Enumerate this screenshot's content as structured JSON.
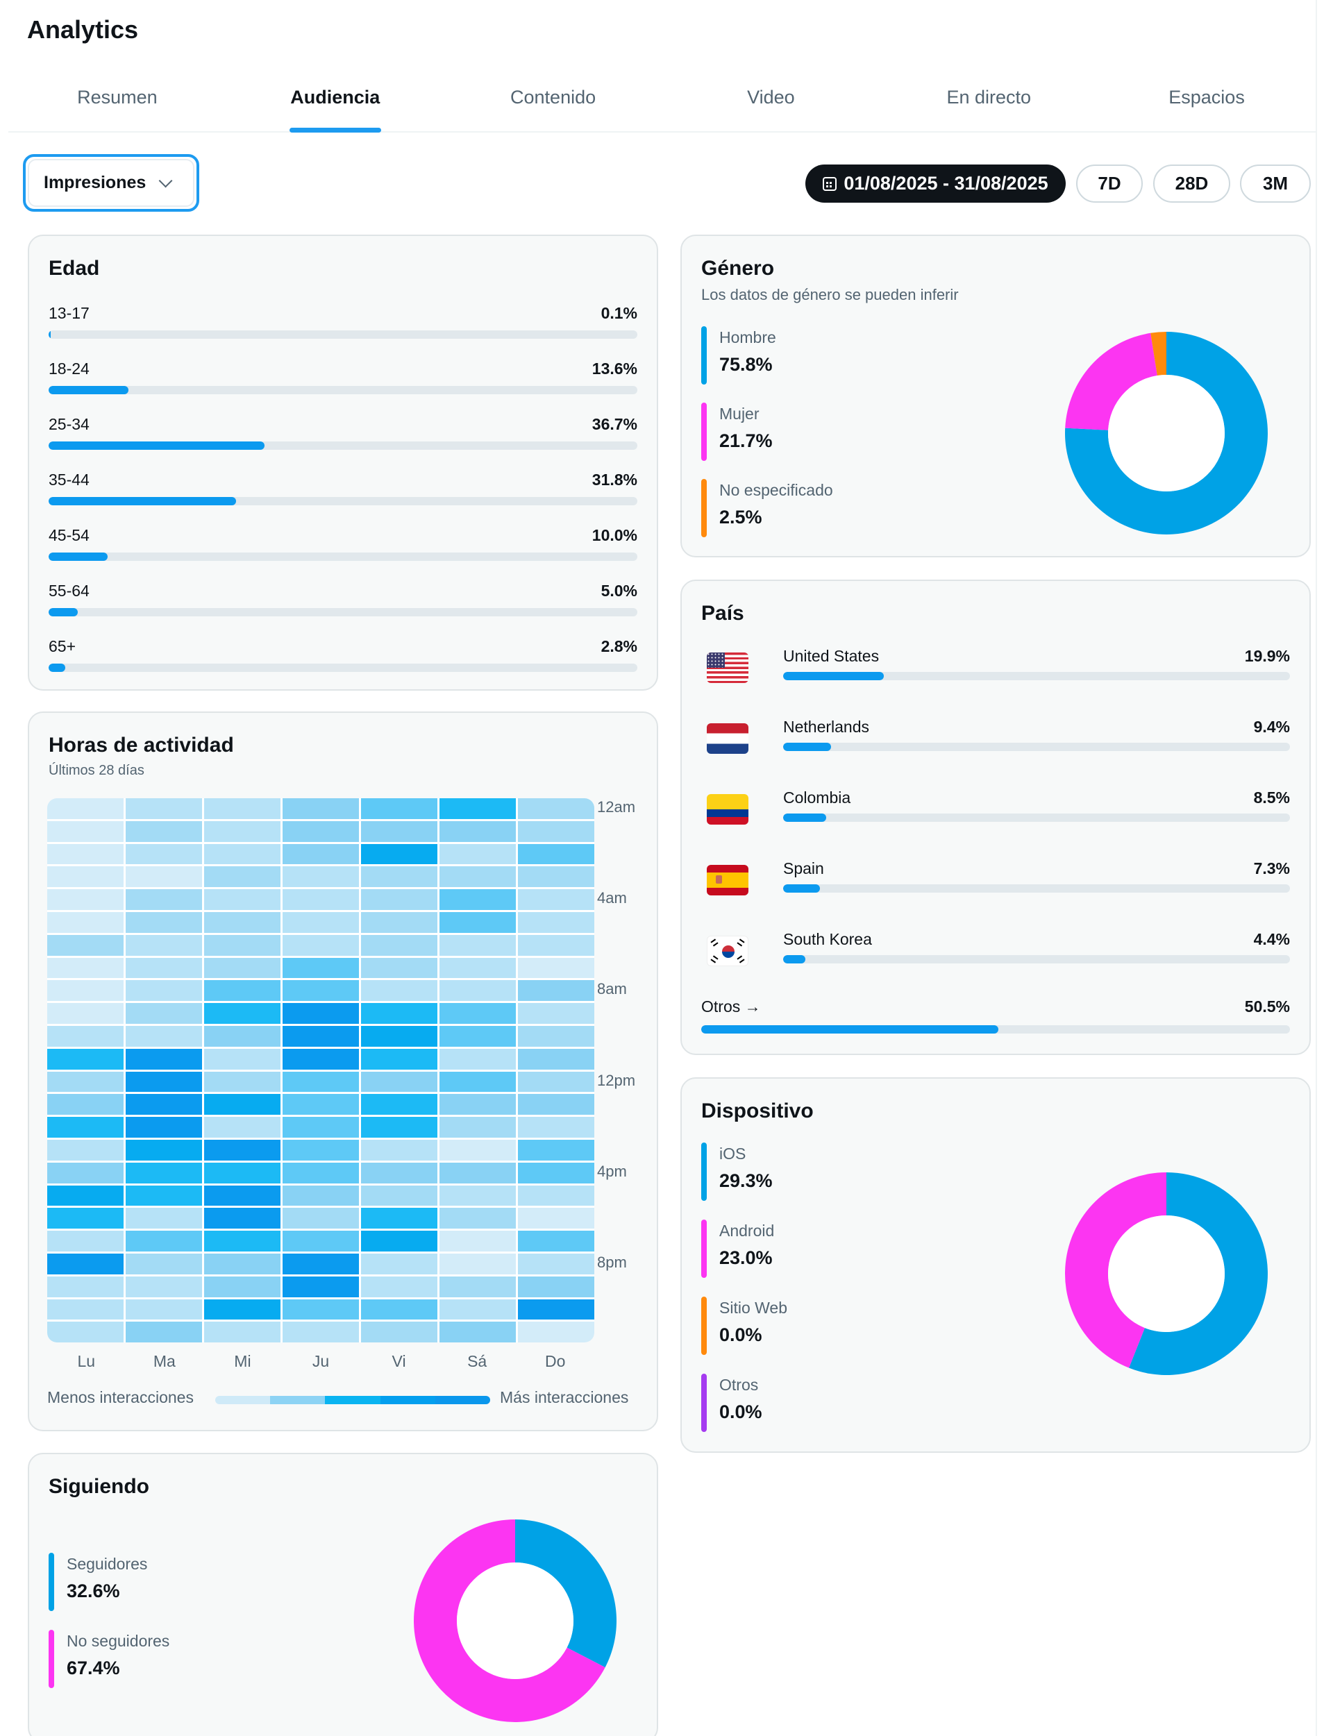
{
  "app": {
    "title": "Analytics"
  },
  "tabs": [
    {
      "label": "Resumen",
      "active": false
    },
    {
      "label": "Audiencia",
      "active": true
    },
    {
      "label": "Contenido",
      "active": false
    },
    {
      "label": "Video",
      "active": false
    },
    {
      "label": "En directo",
      "active": false
    },
    {
      "label": "Espacios",
      "active": false
    }
  ],
  "metric_dropdown": {
    "selected": "Impresiones",
    "icon": "chevron-down-icon"
  },
  "date_range": {
    "label": "01/08/2025 - 31/08/2025",
    "icon": "calendar-icon"
  },
  "range_buttons": [
    "7D",
    "28D",
    "3M"
  ],
  "colors": {
    "accent": "#1d9bf0",
    "bar_fill": "#0c9aef",
    "donut_blue": "#00a2e6",
    "donut_magenta": "#fc35f2",
    "orange": "#ff8a0d",
    "purple": "#a53bf0"
  },
  "age": {
    "title": "Edad",
    "rows": [
      {
        "label": "13-17",
        "value": "0.1%",
        "pct": 0.1
      },
      {
        "label": "18-24",
        "value": "13.6%",
        "pct": 13.6
      },
      {
        "label": "25-34",
        "value": "36.7%",
        "pct": 36.7
      },
      {
        "label": "35-44",
        "value": "31.8%",
        "pct": 31.8
      },
      {
        "label": "45-54",
        "value": "10.0%",
        "pct": 10.0
      },
      {
        "label": "55-64",
        "value": "5.0%",
        "pct": 5.0
      },
      {
        "label": "65+",
        "value": "2.8%",
        "pct": 2.8
      }
    ]
  },
  "gender": {
    "title": "Género",
    "subtitle": "Los datos de género se pueden inferir",
    "items": [
      {
        "label": "Hombre",
        "value": "75.8%",
        "pct": 75.8,
        "color": "#00a2e6"
      },
      {
        "label": "Mujer",
        "value": "21.7%",
        "pct": 21.7,
        "color": "#fc35f2"
      },
      {
        "label": "No especificado",
        "value": "2.5%",
        "pct": 2.5,
        "color": "#ff8a0d"
      }
    ]
  },
  "country": {
    "title": "País",
    "items": [
      {
        "name": "United States",
        "value": "19.9%",
        "pct": 19.9,
        "flag": "us-flag-icon"
      },
      {
        "name": "Netherlands",
        "value": "9.4%",
        "pct": 9.4,
        "flag": "nl-flag-icon"
      },
      {
        "name": "Colombia",
        "value": "8.5%",
        "pct": 8.5,
        "flag": "co-flag-icon"
      },
      {
        "name": "Spain",
        "value": "7.3%",
        "pct": 7.3,
        "flag": "es-flag-icon"
      },
      {
        "name": "South Korea",
        "value": "4.4%",
        "pct": 4.4,
        "flag": "kr-flag-icon"
      }
    ],
    "others": {
      "label": "Otros →",
      "value": "50.5%",
      "pct": 50.5
    }
  },
  "device": {
    "title": "Dispositivo",
    "items": [
      {
        "label": "iOS",
        "value": "29.3%",
        "pct": 29.3,
        "color": "#00a2e6"
      },
      {
        "label": "Android",
        "value": "23.0%",
        "pct": 23.0,
        "color": "#fc35f2"
      },
      {
        "label": "Sitio Web",
        "value": "0.0%",
        "pct": 0.0,
        "color": "#ff8a0d"
      },
      {
        "label": "Otros",
        "value": "0.0%",
        "pct": 0.0,
        "color": "#a53bf0"
      }
    ]
  },
  "following": {
    "title": "Siguiendo",
    "items": [
      {
        "label": "Seguidores",
        "value": "32.6%",
        "pct": 32.6,
        "color": "#00a2e6"
      },
      {
        "label": "No seguidores",
        "value": "67.4%",
        "pct": 67.4,
        "color": "#fc35f2"
      }
    ]
  },
  "activity": {
    "title": "Horas de actividad",
    "subtitle": "Últimos 28 días",
    "days": [
      "Lu",
      "Ma",
      "Mi",
      "Ju",
      "Vi",
      "Sá",
      "Do"
    ],
    "hour_labels": [
      {
        "hour": 0,
        "label": "12am"
      },
      {
        "hour": 4,
        "label": "4am"
      },
      {
        "hour": 8,
        "label": "8am"
      },
      {
        "hour": 12,
        "label": "12pm"
      },
      {
        "hour": 16,
        "label": "4pm"
      },
      {
        "hour": 20,
        "label": "8pm"
      }
    ],
    "legend_less": "Menos interacciones",
    "legend_more": "Más interacciones",
    "scale_colors": [
      "#d3ecf9",
      "#b6e2f7",
      "#a3dbf5",
      "#89d2f4",
      "#5ec9f6",
      "#1cbaf5",
      "#07abf0",
      "#0b9bef"
    ],
    "legend_colors": [
      "#cfeaf8",
      "#8dd3f4",
      "#0ab4f1",
      "#049fee",
      "#0b97ec"
    ],
    "intensity_max": 8,
    "intensity": [
      [
        1,
        2,
        2,
        4,
        5,
        6,
        3
      ],
      [
        1,
        3,
        2,
        4,
        4,
        4,
        3
      ],
      [
        1,
        2,
        2,
        4,
        7,
        2,
        5
      ],
      [
        1,
        1,
        3,
        2,
        3,
        3,
        3
      ],
      [
        1,
        3,
        2,
        2,
        3,
        5,
        2
      ],
      [
        1,
        3,
        3,
        2,
        3,
        5,
        2
      ],
      [
        3,
        2,
        3,
        2,
        3,
        2,
        2
      ],
      [
        1,
        2,
        3,
        5,
        3,
        2,
        1
      ],
      [
        1,
        2,
        5,
        5,
        2,
        2,
        4
      ],
      [
        1,
        3,
        6,
        8,
        6,
        5,
        2
      ],
      [
        2,
        2,
        4,
        8,
        7,
        5,
        3
      ],
      [
        6,
        8,
        2,
        8,
        6,
        2,
        4
      ],
      [
        3,
        8,
        3,
        5,
        4,
        5,
        3
      ],
      [
        4,
        8,
        7,
        5,
        6,
        4,
        4
      ],
      [
        6,
        8,
        2,
        5,
        6,
        3,
        2
      ],
      [
        2,
        7,
        8,
        5,
        2,
        1,
        5
      ],
      [
        4,
        6,
        6,
        5,
        4,
        4,
        5
      ],
      [
        7,
        6,
        8,
        4,
        3,
        2,
        2
      ],
      [
        6,
        2,
        8,
        3,
        6,
        3,
        1
      ],
      [
        2,
        5,
        6,
        5,
        7,
        1,
        5
      ],
      [
        8,
        3,
        4,
        8,
        2,
        1,
        2
      ],
      [
        2,
        2,
        4,
        8,
        2,
        3,
        4
      ],
      [
        2,
        2,
        7,
        5,
        5,
        2,
        8
      ],
      [
        2,
        4,
        2,
        2,
        3,
        4,
        1
      ]
    ]
  }
}
